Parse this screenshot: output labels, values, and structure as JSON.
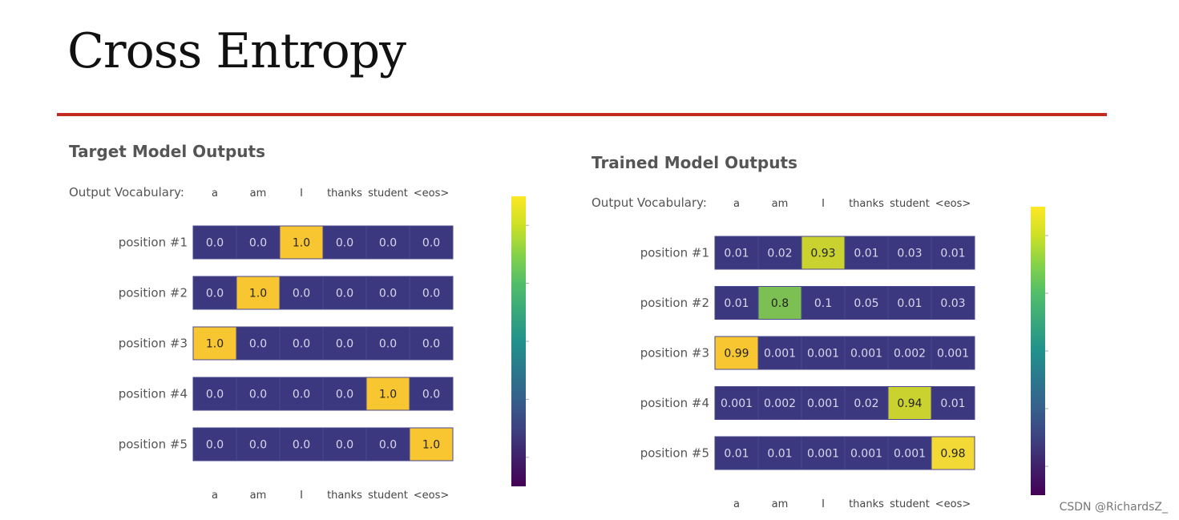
{
  "title": "Cross Entropy",
  "watermark": "CSDN @RichardsZ_",
  "chart_data": [
    {
      "type": "heatmap",
      "title": "Target Model Outputs",
      "vocab_label": "Output Vocabulary:",
      "columns": [
        "a",
        "am",
        "I",
        "thanks",
        "student",
        "<eos>"
      ],
      "rows": [
        "position #1",
        "position #2",
        "position #3",
        "position #4",
        "position #5"
      ],
      "cell_labels": [
        [
          "0.0",
          "0.0",
          "1.0",
          "0.0",
          "0.0",
          "0.0"
        ],
        [
          "0.0",
          "1.0",
          "0.0",
          "0.0",
          "0.0",
          "0.0"
        ],
        [
          "1.0",
          "0.0",
          "0.0",
          "0.0",
          "0.0",
          "0.0"
        ],
        [
          "0.0",
          "0.0",
          "0.0",
          "0.0",
          "1.0",
          "0.0"
        ],
        [
          "0.0",
          "0.0",
          "0.0",
          "0.0",
          "0.0",
          "1.0"
        ]
      ],
      "values": [
        [
          0.0,
          0.0,
          1.0,
          0.0,
          0.0,
          0.0
        ],
        [
          0.0,
          1.0,
          0.0,
          0.0,
          0.0,
          0.0
        ],
        [
          1.0,
          0.0,
          0.0,
          0.0,
          0.0,
          0.0
        ],
        [
          0.0,
          0.0,
          0.0,
          0.0,
          1.0,
          0.0
        ],
        [
          0.0,
          0.0,
          0.0,
          0.0,
          0.0,
          1.0
        ]
      ],
      "colorscale": "viridis",
      "colorbar": true
    },
    {
      "type": "heatmap",
      "title": "Trained Model Outputs",
      "vocab_label": "Output Vocabulary:",
      "columns": [
        "a",
        "am",
        "I",
        "thanks",
        "student",
        "<eos>"
      ],
      "rows": [
        "position #1",
        "position #2",
        "position #3",
        "position #4",
        "position #5"
      ],
      "cell_labels": [
        [
          "0.01",
          "0.02",
          "0.93",
          "0.01",
          "0.03",
          "0.01"
        ],
        [
          "0.01",
          "0.8",
          "0.1",
          "0.05",
          "0.01",
          "0.03"
        ],
        [
          "0.99",
          "0.001",
          "0.001",
          "0.001",
          "0.002",
          "0.001"
        ],
        [
          "0.001",
          "0.002",
          "0.001",
          "0.02",
          "0.94",
          "0.01"
        ],
        [
          "0.01",
          "0.01",
          "0.001",
          "0.001",
          "0.001",
          "0.98"
        ]
      ],
      "values": [
        [
          0.01,
          0.02,
          0.93,
          0.01,
          0.03,
          0.01
        ],
        [
          0.01,
          0.8,
          0.1,
          0.05,
          0.01,
          0.03
        ],
        [
          0.99,
          0.001,
          0.001,
          0.001,
          0.002,
          0.001
        ],
        [
          0.001,
          0.002,
          0.001,
          0.02,
          0.94,
          0.01
        ],
        [
          0.01,
          0.01,
          0.001,
          0.001,
          0.001,
          0.98
        ]
      ],
      "colorscale": "viridis",
      "colorbar": true
    }
  ]
}
